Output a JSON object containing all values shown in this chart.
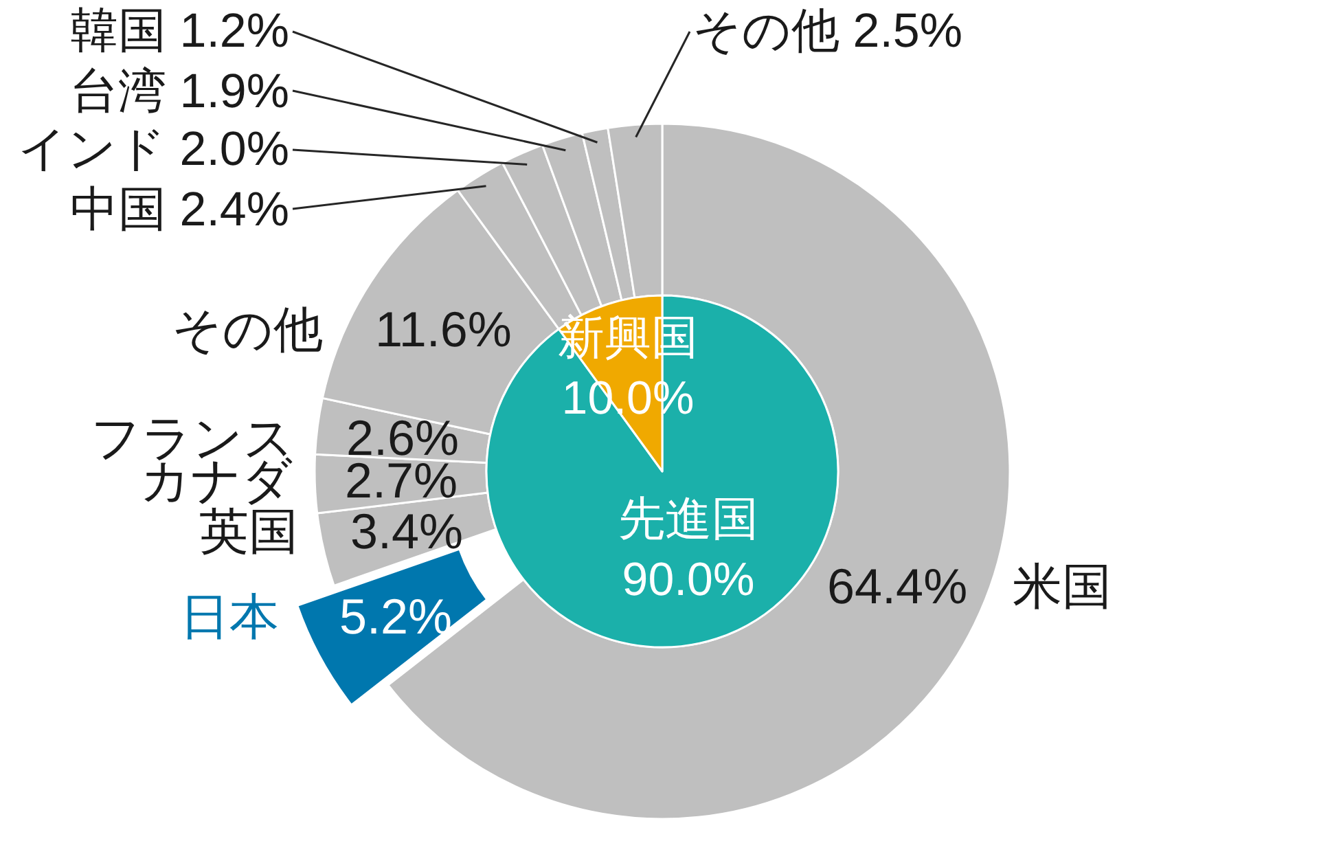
{
  "chart_data": [
    {
      "type": "donut",
      "categories": [
        "米国",
        "日本",
        "英国",
        "カナダ",
        "フランス",
        "その他",
        "中国",
        "インド",
        "台湾",
        "韓国",
        "その他"
      ],
      "values": [
        64.4,
        5.2,
        3.4,
        2.7,
        2.6,
        11.6,
        2.4,
        2.0,
        1.9,
        1.2,
        2.5
      ],
      "colors": [
        "#bfbfbf",
        "#0077ae",
        "#bfbfbf",
        "#bfbfbf",
        "#bfbfbf",
        "#bfbfbf",
        "#bfbfbf",
        "#bfbfbf",
        "#bfbfbf",
        "#bfbfbf",
        "#bfbfbf"
      ],
      "value_labels": [
        "64.4%",
        "5.2%",
        "3.4%",
        "2.7%",
        "2.6%",
        "11.6%",
        "2.4%",
        "2.0%",
        "1.9%",
        "1.2%",
        "2.5%"
      ]
    },
    {
      "type": "pie",
      "categories": [
        "先進国",
        "新興国"
      ],
      "values": [
        90.0,
        10.0
      ],
      "colors": [
        "#1bb0aa",
        "#f0a900"
      ],
      "value_labels": [
        "90.0%",
        "10.0%"
      ]
    }
  ]
}
